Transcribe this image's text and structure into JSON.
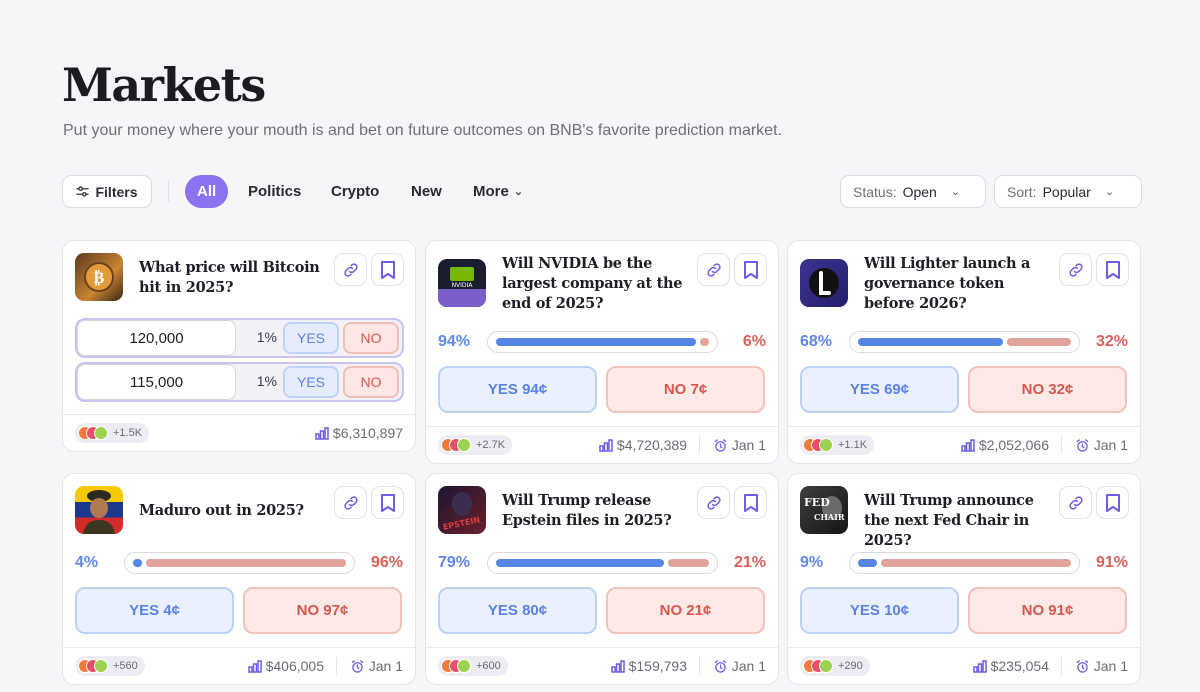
{
  "header": {
    "title": "Markets",
    "subtitle": "Put your money where your mouth is and bet on future outcomes on BNB's favorite prediction market."
  },
  "toolbar": {
    "filters_label": "Filters",
    "categories": [
      "All",
      "Politics",
      "Crypto",
      "New",
      "More"
    ],
    "status_label": "Status:",
    "status_value": "Open",
    "sort_label": "Sort:",
    "sort_value": "Popular"
  },
  "colors": {
    "accent": "#8a72f0",
    "yes": "#5585e6",
    "no": "#d8615b"
  },
  "markets": [
    {
      "question": "What price will Bitcoin hit in 2025?",
      "options": [
        {
          "value": "120,000",
          "pct": "1%",
          "yes": "YES",
          "no": "NO"
        },
        {
          "value": "115,000",
          "pct": "1%",
          "yes": "YES",
          "no": "NO"
        }
      ],
      "participants": "+1.5K",
      "volume": "$6,310,897"
    },
    {
      "question": "Will NVIDIA be the largest company at the end of 2025?",
      "yes_pct": "94%",
      "no_pct": "6%",
      "yes_fraction": 0.94,
      "yes_btn": "YES 94¢",
      "no_btn": "NO 7¢",
      "participants": "+2.7K",
      "volume": "$4,720,389",
      "end": "Jan 1"
    },
    {
      "question": "Will Lighter launch a governance token before 2026?",
      "yes_pct": "68%",
      "no_pct": "32%",
      "yes_fraction": 0.68,
      "yes_btn": "YES 69¢",
      "no_btn": "NO 32¢",
      "participants": "+1.1K",
      "volume": "$2,052,066",
      "end": "Jan 1"
    },
    {
      "question": "Maduro out in 2025?",
      "yes_pct": "4%",
      "no_pct": "96%",
      "yes_fraction": 0.04,
      "yes_btn": "YES 4¢",
      "no_btn": "NO 97¢",
      "participants": "+560",
      "volume": "$406,005",
      "end": "Jan 1"
    },
    {
      "question": "Will Trump release Epstein files in 2025?",
      "yes_pct": "79%",
      "no_pct": "21%",
      "yes_fraction": 0.79,
      "yes_btn": "YES 80¢",
      "no_btn": "NO 21¢",
      "participants": "+600",
      "volume": "$159,793",
      "end": "Jan 1"
    },
    {
      "question": "Will Trump announce the next Fed Chair in 2025?",
      "yes_pct": "9%",
      "no_pct": "91%",
      "yes_fraction": 0.09,
      "yes_btn": "YES 10¢",
      "no_btn": "NO 91¢",
      "participants": "+290",
      "volume": "$235,054",
      "end": "Jan 1"
    }
  ],
  "thumbnails": {
    "nvidia": "NVIDIA",
    "epstein": "EPSTEIN",
    "fed": "FED",
    "chair": "CHAIR"
  }
}
